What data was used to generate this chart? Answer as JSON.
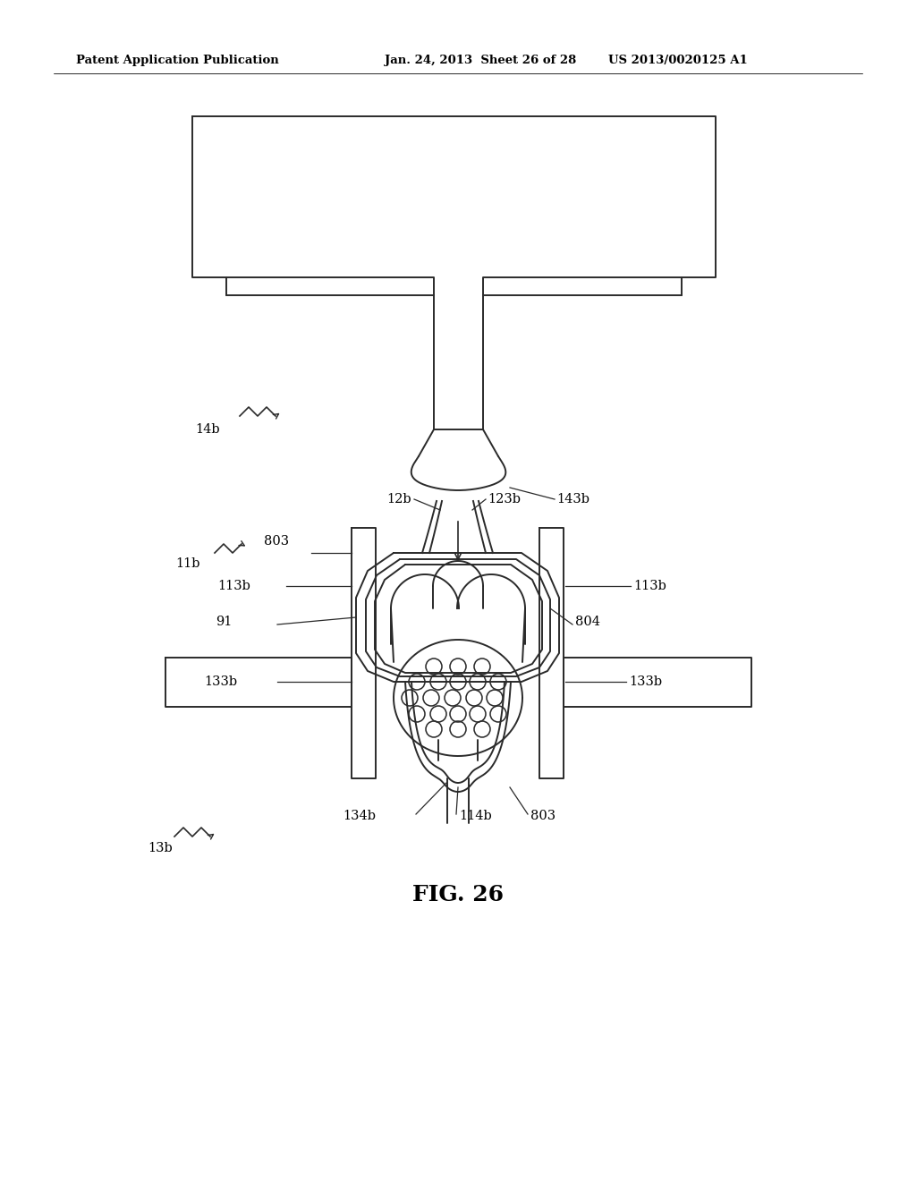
{
  "bg_color": "#ffffff",
  "line_color": "#2a2a2a",
  "line_width": 1.4,
  "header_left": "Patent Application Publication",
  "header_mid": "Jan. 24, 2013  Sheet 26 of 28",
  "header_right": "US 2013/0020125 A1",
  "figure_label": "FIG. 26"
}
